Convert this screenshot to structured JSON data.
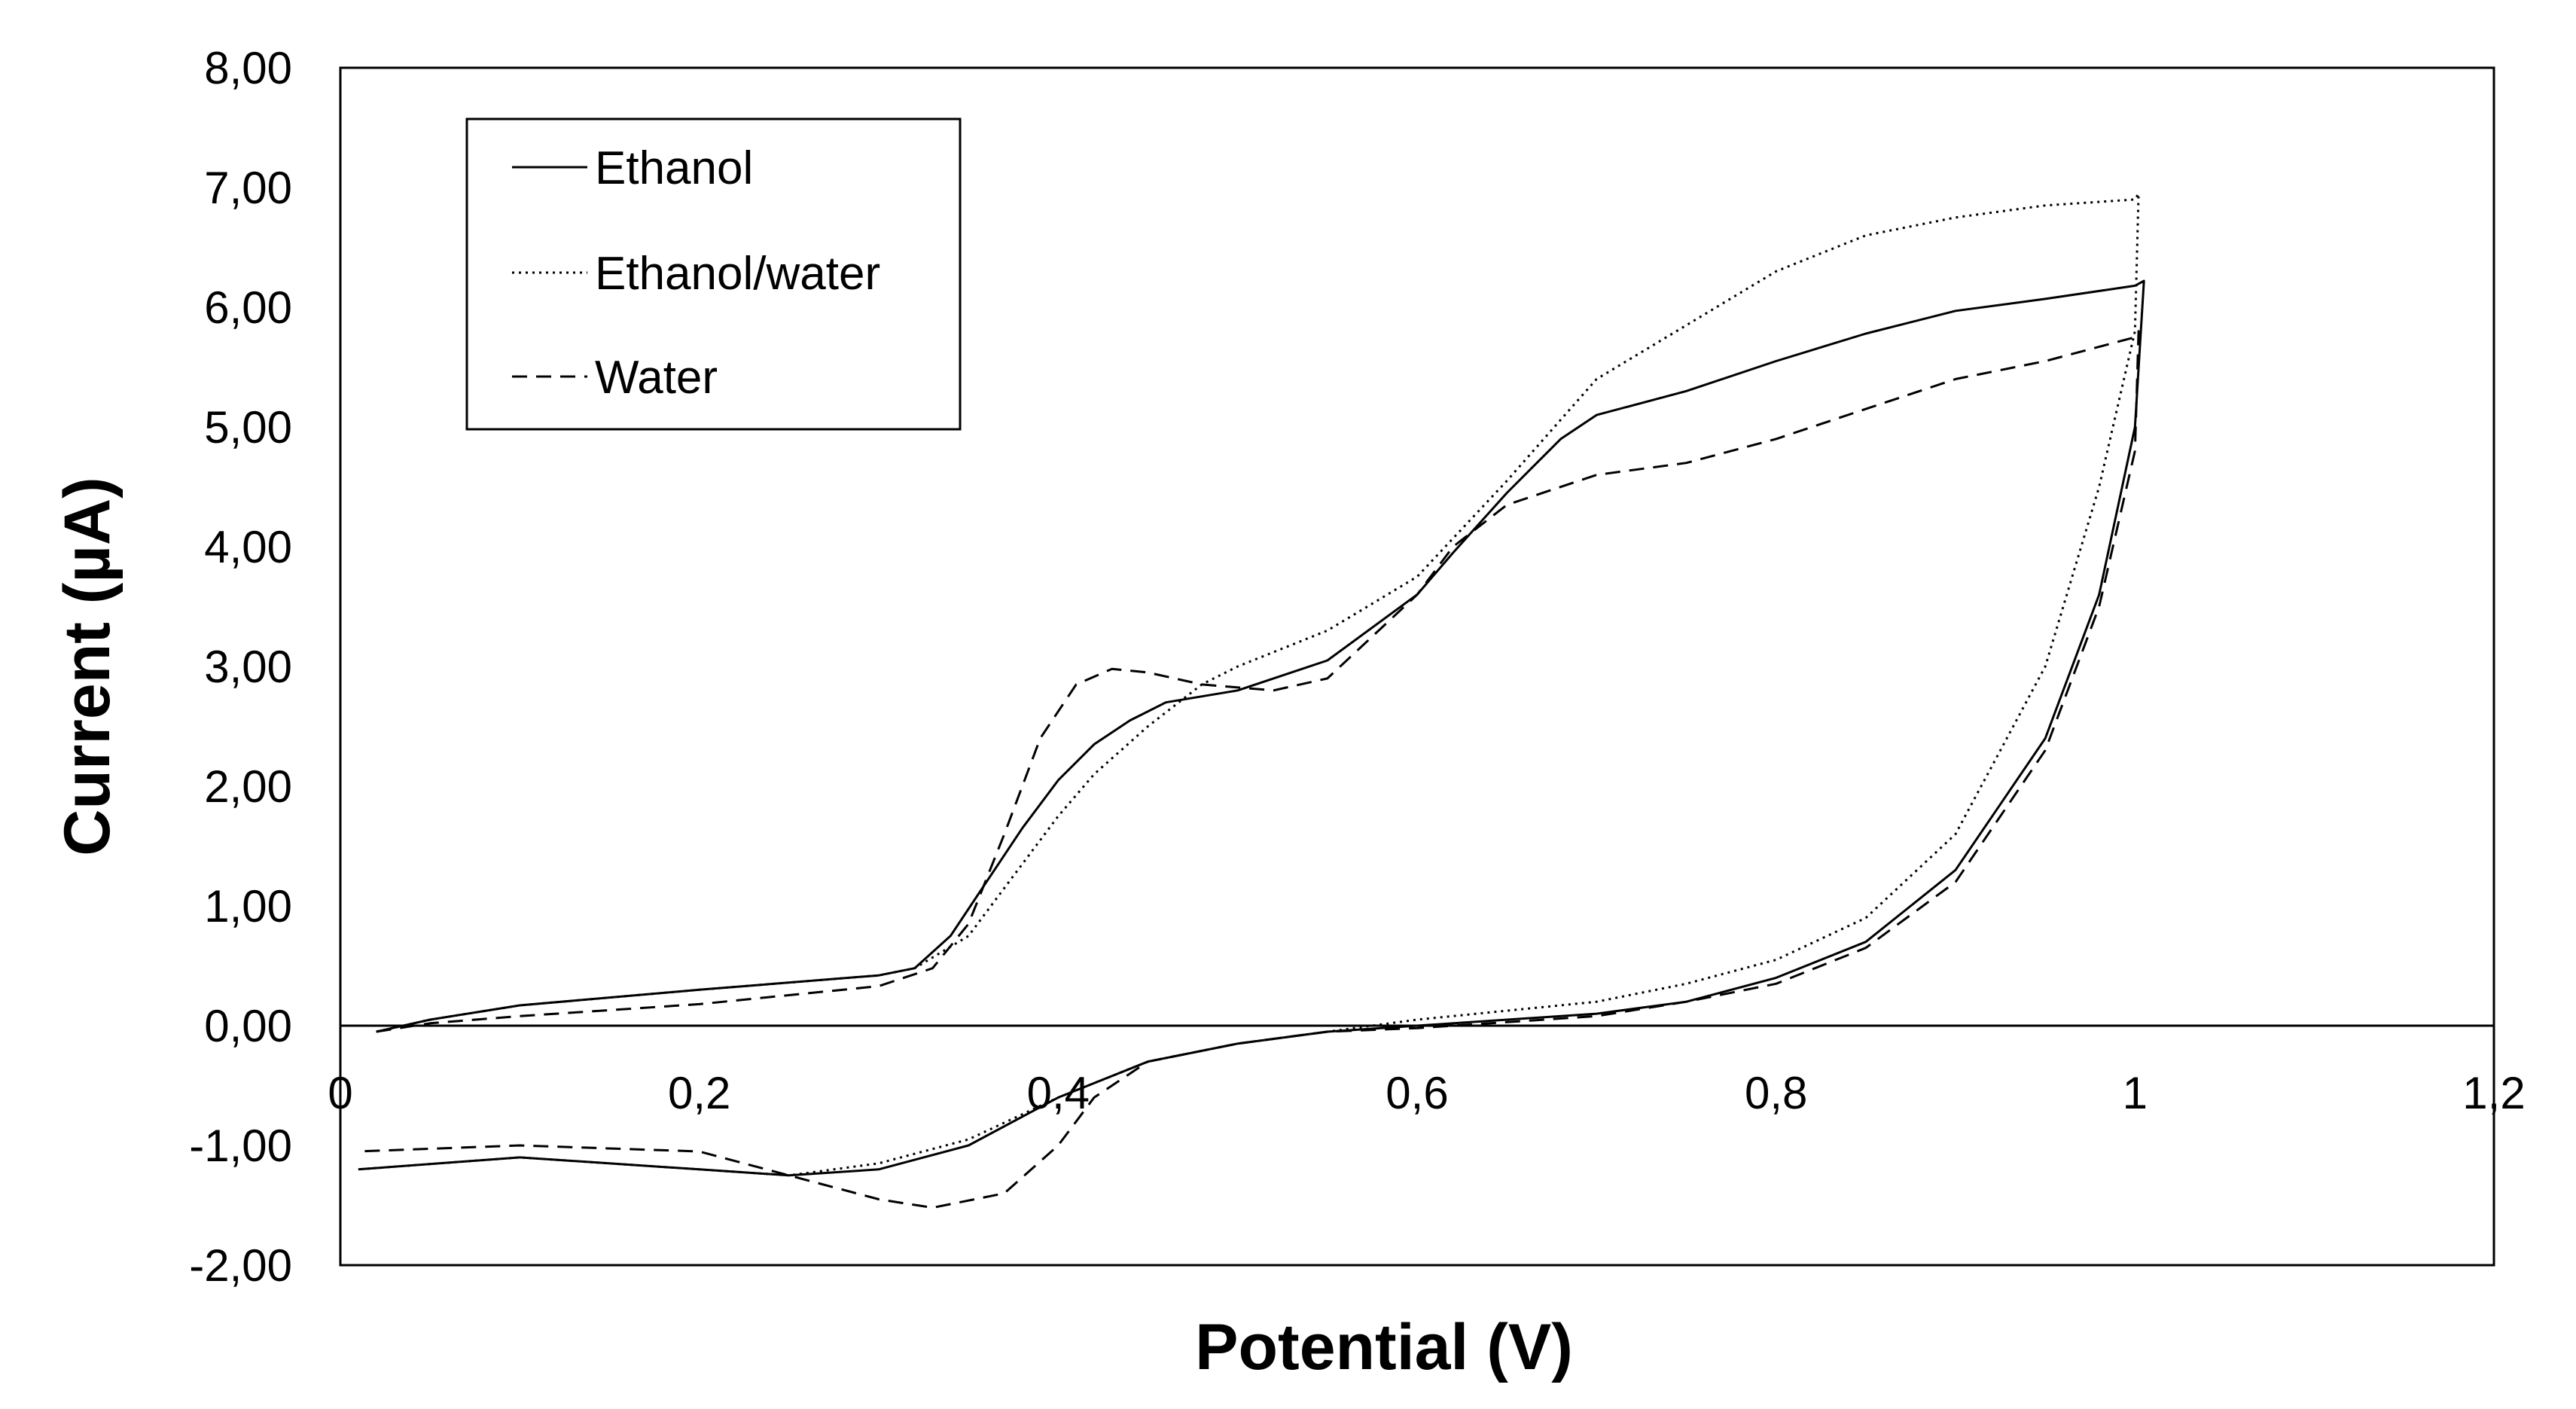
{
  "chart_data": {
    "type": "line",
    "title": "",
    "xlabel": "Potential (V)",
    "ylabel": "Current (µA)",
    "xlim": [
      0,
      1.2
    ],
    "ylim": [
      -2,
      8
    ],
    "x_ticks": [
      0,
      0.2,
      0.4,
      0.6,
      0.8,
      1,
      1.2
    ],
    "x_tick_labels": [
      "0",
      "0,2",
      "0,4",
      "0,6",
      "0,8",
      "1",
      "1,2"
    ],
    "y_ticks": [
      -2,
      -1,
      0,
      1,
      2,
      3,
      4,
      5,
      6,
      7,
      8
    ],
    "y_tick_labels": [
      "-2,00",
      "-1,00",
      "0,00",
      "1,00",
      "2,00",
      "3,00",
      "4,00",
      "5,00",
      "6,00",
      "7,00",
      "8,00"
    ],
    "grid": false,
    "legend_position": "top-left",
    "series": [
      {
        "name": "Ethanol",
        "style": "solid",
        "points": [
          [
            0.02,
            -0.05
          ],
          [
            0.05,
            0.05
          ],
          [
            0.1,
            0.17
          ],
          [
            0.2,
            0.3
          ],
          [
            0.3,
            0.42
          ],
          [
            0.32,
            0.48
          ],
          [
            0.34,
            0.75
          ],
          [
            0.36,
            1.2
          ],
          [
            0.38,
            1.65
          ],
          [
            0.4,
            2.05
          ],
          [
            0.42,
            2.35
          ],
          [
            0.44,
            2.55
          ],
          [
            0.46,
            2.7
          ],
          [
            0.5,
            2.8
          ],
          [
            0.55,
            3.05
          ],
          [
            0.6,
            3.6
          ],
          [
            0.62,
            3.95
          ],
          [
            0.65,
            4.45
          ],
          [
            0.68,
            4.9
          ],
          [
            0.7,
            5.1
          ],
          [
            0.75,
            5.3
          ],
          [
            0.8,
            5.55
          ],
          [
            0.85,
            5.78
          ],
          [
            0.9,
            5.97
          ],
          [
            0.95,
            6.07
          ],
          [
            1.0,
            6.18
          ],
          [
            1.005,
            6.22
          ],
          [
            1.0,
            5.0
          ],
          [
            0.98,
            3.6
          ],
          [
            0.95,
            2.4
          ],
          [
            0.9,
            1.3
          ],
          [
            0.85,
            0.7
          ],
          [
            0.8,
            0.4
          ],
          [
            0.75,
            0.2
          ],
          [
            0.7,
            0.1
          ],
          [
            0.6,
            0.0
          ],
          [
            0.55,
            -0.05
          ],
          [
            0.5,
            -0.15
          ],
          [
            0.45,
            -0.3
          ],
          [
            0.4,
            -0.6
          ],
          [
            0.35,
            -1.0
          ],
          [
            0.3,
            -1.2
          ],
          [
            0.25,
            -1.25
          ],
          [
            0.2,
            -1.2
          ],
          [
            0.1,
            -1.1
          ],
          [
            0.01,
            -1.2
          ]
        ]
      },
      {
        "name": "Ethanol/water",
        "style": "dotted",
        "points": [
          [
            0.02,
            -0.05
          ],
          [
            0.05,
            0.05
          ],
          [
            0.1,
            0.17
          ],
          [
            0.2,
            0.3
          ],
          [
            0.3,
            0.42
          ],
          [
            0.32,
            0.48
          ],
          [
            0.35,
            0.75
          ],
          [
            0.37,
            1.15
          ],
          [
            0.4,
            1.75
          ],
          [
            0.42,
            2.1
          ],
          [
            0.45,
            2.5
          ],
          [
            0.48,
            2.85
          ],
          [
            0.5,
            3.0
          ],
          [
            0.55,
            3.3
          ],
          [
            0.6,
            3.75
          ],
          [
            0.65,
            4.55
          ],
          [
            0.7,
            5.4
          ],
          [
            0.75,
            5.85
          ],
          [
            0.8,
            6.3
          ],
          [
            0.85,
            6.6
          ],
          [
            0.9,
            6.75
          ],
          [
            0.95,
            6.85
          ],
          [
            1.0,
            6.9
          ],
          [
            1.002,
            6.95
          ],
          [
            1.0,
            5.8
          ],
          [
            0.98,
            4.5
          ],
          [
            0.95,
            3.0
          ],
          [
            0.9,
            1.6
          ],
          [
            0.85,
            0.9
          ],
          [
            0.8,
            0.55
          ],
          [
            0.75,
            0.35
          ],
          [
            0.7,
            0.2
          ],
          [
            0.6,
            0.05
          ],
          [
            0.55,
            -0.05
          ],
          [
            0.5,
            -0.15
          ],
          [
            0.45,
            -0.3
          ],
          [
            0.4,
            -0.6
          ],
          [
            0.35,
            -0.95
          ],
          [
            0.3,
            -1.15
          ],
          [
            0.25,
            -1.25
          ],
          [
            0.2,
            -1.2
          ],
          [
            0.1,
            -1.1
          ],
          [
            0.01,
            -1.2
          ]
        ]
      },
      {
        "name": "Water",
        "style": "dashed",
        "points": [
          [
            0.02,
            -0.05
          ],
          [
            0.05,
            0.02
          ],
          [
            0.1,
            0.08
          ],
          [
            0.2,
            0.18
          ],
          [
            0.3,
            0.33
          ],
          [
            0.33,
            0.48
          ],
          [
            0.35,
            0.85
          ],
          [
            0.37,
            1.6
          ],
          [
            0.39,
            2.4
          ],
          [
            0.41,
            2.85
          ],
          [
            0.43,
            2.98
          ],
          [
            0.45,
            2.95
          ],
          [
            0.48,
            2.85
          ],
          [
            0.52,
            2.8
          ],
          [
            0.55,
            2.9
          ],
          [
            0.6,
            3.6
          ],
          [
            0.62,
            4.0
          ],
          [
            0.65,
            4.35
          ],
          [
            0.7,
            4.6
          ],
          [
            0.75,
            4.7
          ],
          [
            0.8,
            4.9
          ],
          [
            0.85,
            5.15
          ],
          [
            0.9,
            5.4
          ],
          [
            0.95,
            5.55
          ],
          [
            1.0,
            5.75
          ],
          [
            1.002,
            5.8
          ],
          [
            1.0,
            4.8
          ],
          [
            0.98,
            3.5
          ],
          [
            0.95,
            2.3
          ],
          [
            0.9,
            1.2
          ],
          [
            0.85,
            0.65
          ],
          [
            0.8,
            0.35
          ],
          [
            0.75,
            0.2
          ],
          [
            0.7,
            0.08
          ],
          [
            0.6,
            -0.02
          ],
          [
            0.55,
            -0.05
          ],
          [
            0.5,
            -0.15
          ],
          [
            0.45,
            -0.3
          ],
          [
            0.42,
            -0.6
          ],
          [
            0.4,
            -1.0
          ],
          [
            0.37,
            -1.4
          ],
          [
            0.33,
            -1.52
          ],
          [
            0.3,
            -1.45
          ],
          [
            0.25,
            -1.25
          ],
          [
            0.2,
            -1.05
          ],
          [
            0.1,
            -1.0
          ],
          [
            0.01,
            -1.05
          ]
        ]
      }
    ]
  }
}
